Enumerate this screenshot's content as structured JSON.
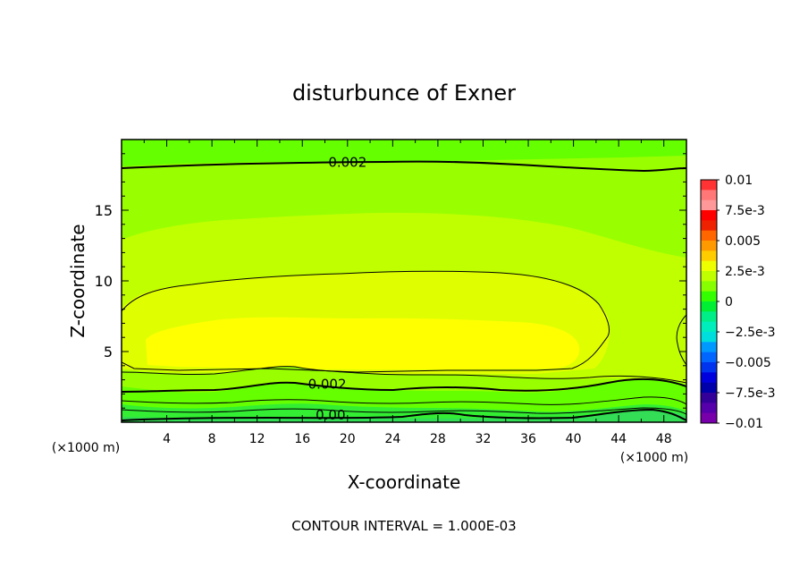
{
  "chart_data": {
    "type": "heatmap",
    "title": "disturbunce of Exner",
    "xlabel": "X-coordinate",
    "ylabel": "Z-coordinate",
    "x_unit": "(×1000 m)",
    "x_unit_right": "(×1000 m)",
    "footer": "CONTOUR INTERVAL = 1.000E-03",
    "xlim": [
      0,
      50
    ],
    "ylim": [
      0,
      20
    ],
    "xticks": [
      4,
      8,
      12,
      16,
      20,
      24,
      28,
      32,
      36,
      40,
      44,
      48
    ],
    "yticks": [
      5,
      10,
      15
    ],
    "contour_interval": 0.001,
    "contour_labels": [
      {
        "text": "0.002",
        "x": 20,
        "y": 18.4
      },
      {
        "text": "0.002",
        "x": 18.2,
        "y": 2.7
      },
      {
        "text": "0.00",
        "x": 18.5,
        "y": 0.5
      }
    ],
    "field_levels": [
      {
        "level": "0.0045",
        "color": "#ffff00"
      },
      {
        "level": "0.0035",
        "color": "#dfff00"
      },
      {
        "level": "0.0025",
        "color": "#bfff00"
      },
      {
        "level": "0.0015",
        "color": "#99ff00"
      },
      {
        "level": "0.0005",
        "color": "#66ff00"
      },
      {
        "level": "-0.0005",
        "color": "#33ee33"
      }
    ],
    "colorbar": {
      "ticks": [
        "0.01",
        "7.5e-3",
        "0.005",
        "2.5e-3",
        "0",
        "−2.5e-3",
        "−0.005",
        "−7.5e-3",
        "−0.01"
      ],
      "colors": [
        "#ff3333",
        "#ff7777",
        "#ff9999",
        "#ff0000",
        "#ee2200",
        "#ff6600",
        "#ff9900",
        "#ffcc00",
        "#eeff00",
        "#bfff00",
        "#88ff00",
        "#33ff00",
        "#00ee33",
        "#00ee88",
        "#00eebb",
        "#00dddd",
        "#0099ff",
        "#0066ff",
        "#0033ee",
        "#0000dd",
        "#0000aa",
        "#330099",
        "#5500aa",
        "#7700aa"
      ]
    }
  }
}
